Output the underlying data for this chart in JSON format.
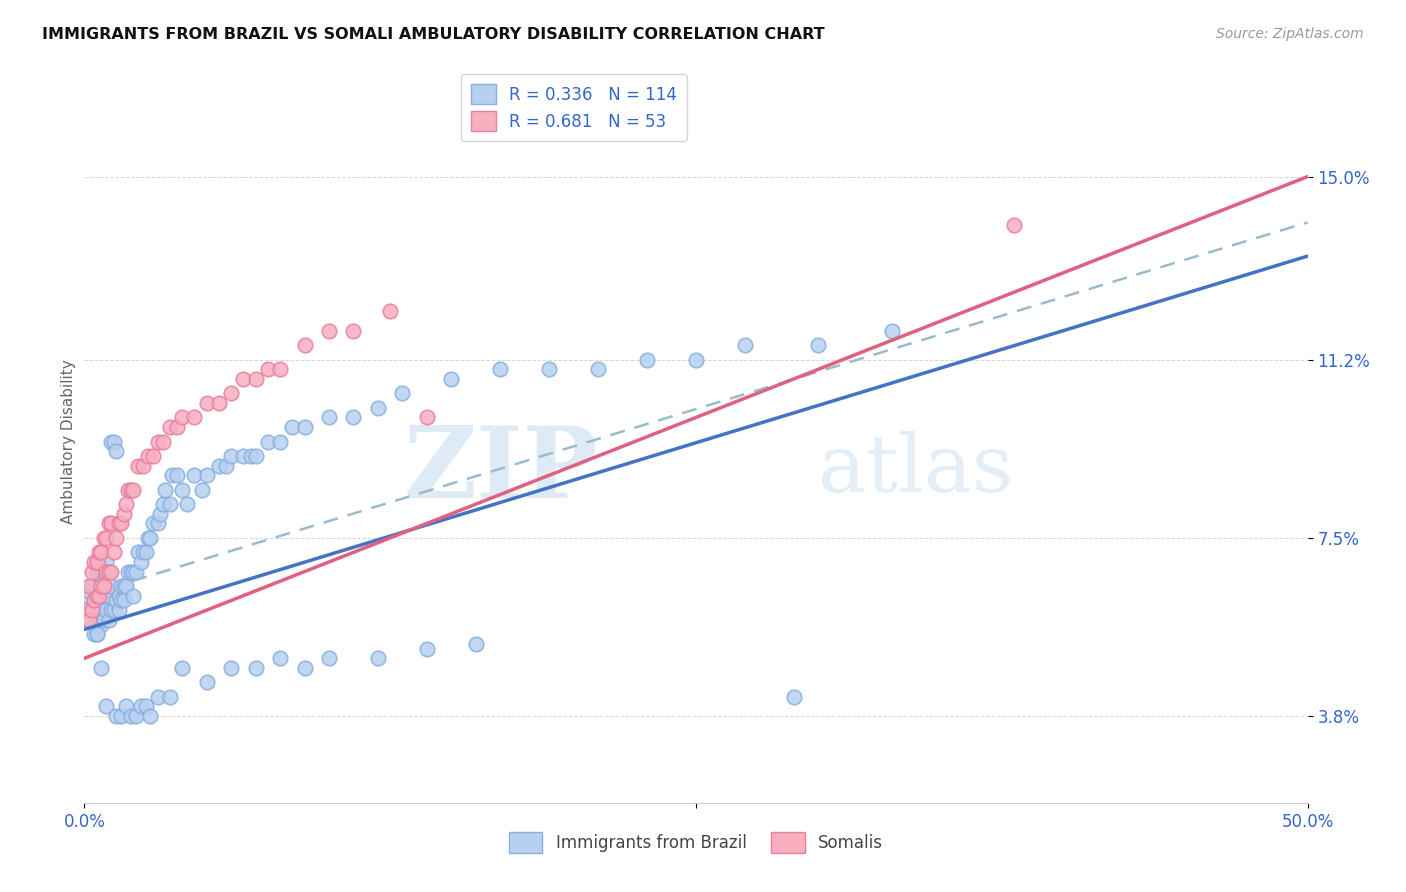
{
  "title": "IMMIGRANTS FROM BRAZIL VS SOMALI AMBULATORY DISABILITY CORRELATION CHART",
  "source": "Source: ZipAtlas.com",
  "ylabel": "Ambulatory Disability",
  "yticks_labels": [
    "3.8%",
    "7.5%",
    "11.2%",
    "15.0%"
  ],
  "ytick_vals": [
    0.038,
    0.075,
    0.112,
    0.15
  ],
  "xlim": [
    0.0,
    0.5
  ],
  "ylim": [
    0.02,
    0.17
  ],
  "brazil_color": "#b8d0f0",
  "brazil_edge": "#8ab0e0",
  "somali_color": "#f8b0c0",
  "somali_edge": "#e880a0",
  "brazil_R": 0.336,
  "brazil_N": 114,
  "somali_R": 0.681,
  "somali_N": 53,
  "legend_label_brazil": "Immigrants from Brazil",
  "legend_label_somali": "Somalis",
  "watermark_zip": "ZIP",
  "watermark_atlas": "atlas",
  "brazil_line_color": "#4472c4",
  "somali_line_color": "#e06080",
  "brazil_line_intercept": 0.056,
  "brazil_line_slope": 0.155,
  "somali_line_intercept": 0.05,
  "somali_line_slope": 0.2,
  "dash_line_intercept": 0.063,
  "dash_line_slope": 0.155,
  "brazil_scatter_x": [
    0.001,
    0.002,
    0.002,
    0.003,
    0.003,
    0.004,
    0.004,
    0.004,
    0.005,
    0.005,
    0.005,
    0.005,
    0.006,
    0.006,
    0.006,
    0.007,
    0.007,
    0.007,
    0.007,
    0.008,
    0.008,
    0.008,
    0.009,
    0.009,
    0.009,
    0.01,
    0.01,
    0.01,
    0.011,
    0.011,
    0.011,
    0.012,
    0.012,
    0.013,
    0.013,
    0.014,
    0.014,
    0.015,
    0.015,
    0.016,
    0.016,
    0.017,
    0.018,
    0.019,
    0.02,
    0.02,
    0.021,
    0.022,
    0.023,
    0.024,
    0.025,
    0.026,
    0.027,
    0.028,
    0.03,
    0.031,
    0.032,
    0.033,
    0.035,
    0.036,
    0.038,
    0.04,
    0.042,
    0.045,
    0.048,
    0.05,
    0.055,
    0.058,
    0.06,
    0.065,
    0.068,
    0.07,
    0.075,
    0.08,
    0.085,
    0.09,
    0.1,
    0.11,
    0.12,
    0.13,
    0.15,
    0.17,
    0.19,
    0.21,
    0.23,
    0.25,
    0.27,
    0.3,
    0.33,
    0.005,
    0.007,
    0.009,
    0.013,
    0.015,
    0.017,
    0.019,
    0.021,
    0.023,
    0.025,
    0.027,
    0.03,
    0.035,
    0.04,
    0.05,
    0.06,
    0.07,
    0.08,
    0.09,
    0.1,
    0.12,
    0.14,
    0.16,
    0.29
  ],
  "brazil_scatter_y": [
    0.063,
    0.058,
    0.064,
    0.06,
    0.065,
    0.055,
    0.06,
    0.065,
    0.055,
    0.06,
    0.063,
    0.068,
    0.058,
    0.063,
    0.07,
    0.057,
    0.062,
    0.067,
    0.072,
    0.058,
    0.063,
    0.068,
    0.06,
    0.065,
    0.07,
    0.058,
    0.063,
    0.068,
    0.06,
    0.065,
    0.095,
    0.06,
    0.095,
    0.062,
    0.093,
    0.06,
    0.063,
    0.062,
    0.065,
    0.062,
    0.065,
    0.065,
    0.068,
    0.068,
    0.063,
    0.068,
    0.068,
    0.072,
    0.07,
    0.072,
    0.072,
    0.075,
    0.075,
    0.078,
    0.078,
    0.08,
    0.082,
    0.085,
    0.082,
    0.088,
    0.088,
    0.085,
    0.082,
    0.088,
    0.085,
    0.088,
    0.09,
    0.09,
    0.092,
    0.092,
    0.092,
    0.092,
    0.095,
    0.095,
    0.098,
    0.098,
    0.1,
    0.1,
    0.102,
    0.105,
    0.108,
    0.11,
    0.11,
    0.11,
    0.112,
    0.112,
    0.115,
    0.115,
    0.118,
    0.055,
    0.048,
    0.04,
    0.038,
    0.038,
    0.04,
    0.038,
    0.038,
    0.04,
    0.04,
    0.038,
    0.042,
    0.042,
    0.048,
    0.045,
    0.048,
    0.048,
    0.05,
    0.048,
    0.05,
    0.05,
    0.052,
    0.053,
    0.042
  ],
  "somali_scatter_x": [
    0.001,
    0.002,
    0.002,
    0.003,
    0.003,
    0.004,
    0.004,
    0.005,
    0.005,
    0.006,
    0.006,
    0.007,
    0.007,
    0.008,
    0.008,
    0.009,
    0.009,
    0.01,
    0.01,
    0.011,
    0.011,
    0.012,
    0.013,
    0.014,
    0.015,
    0.016,
    0.017,
    0.018,
    0.019,
    0.02,
    0.022,
    0.024,
    0.026,
    0.028,
    0.03,
    0.032,
    0.035,
    0.038,
    0.04,
    0.045,
    0.05,
    0.055,
    0.06,
    0.065,
    0.07,
    0.075,
    0.08,
    0.09,
    0.1,
    0.11,
    0.125,
    0.14,
    0.38
  ],
  "somali_scatter_y": [
    0.06,
    0.058,
    0.065,
    0.06,
    0.068,
    0.062,
    0.07,
    0.063,
    0.07,
    0.063,
    0.072,
    0.065,
    0.072,
    0.065,
    0.075,
    0.068,
    0.075,
    0.068,
    0.078,
    0.068,
    0.078,
    0.072,
    0.075,
    0.078,
    0.078,
    0.08,
    0.082,
    0.085,
    0.085,
    0.085,
    0.09,
    0.09,
    0.092,
    0.092,
    0.095,
    0.095,
    0.098,
    0.098,
    0.1,
    0.1,
    0.103,
    0.103,
    0.105,
    0.108,
    0.108,
    0.11,
    0.11,
    0.115,
    0.118,
    0.118,
    0.122,
    0.1,
    0.14
  ]
}
